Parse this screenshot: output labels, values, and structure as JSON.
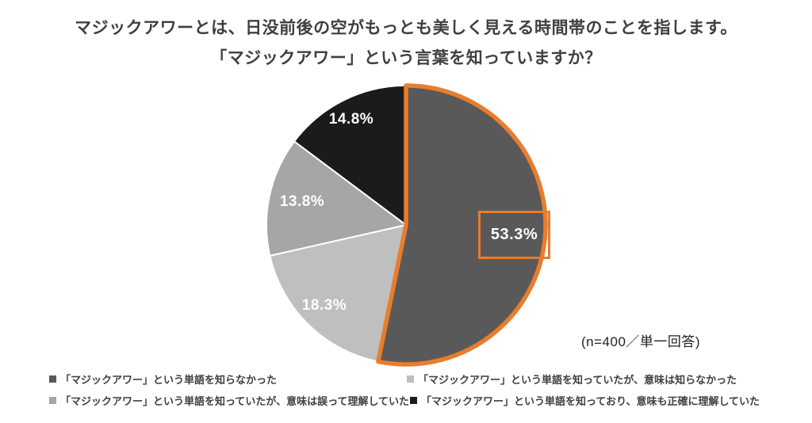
{
  "title": {
    "line1": "マジックアワーとは、日没前後の空がもっとも美しく見える時間帯のことを指します。",
    "line2": "「マジックアワー」という言葉を知っていますか？"
  },
  "note": "(n=400／単一回答)",
  "chart_data": {
    "type": "pie",
    "title": "「マジックアワー」という言葉を知っていますか？",
    "start_angle_deg": 0,
    "direction": "clockwise",
    "sample_note": "(n=400／単一回答)",
    "legend_position": "bottom",
    "highlight_color": "#E87D2D",
    "slices": [
      {
        "label": "「マジックアワー」という単語を知らなかった",
        "value": 53.3,
        "display": "53.3%",
        "color": "#595959",
        "highlighted": true
      },
      {
        "label": "「マジックアワー」という単語を知っていたが、意味は知らなかった",
        "value": 18.3,
        "display": "18.3%",
        "color": "#BFBFBF",
        "highlighted": false
      },
      {
        "label": "「マジックアワー」という単語を知っていたが、意味は誤って理解していた",
        "value": 13.8,
        "display": "13.8%",
        "color": "#A6A6A6",
        "highlighted": false
      },
      {
        "label": "「マジックアワー」という単語を知っており、意味も正確に理解していた",
        "value": 14.8,
        "display": "14.8%",
        "color": "#1B1B1B",
        "highlighted": false
      }
    ]
  }
}
